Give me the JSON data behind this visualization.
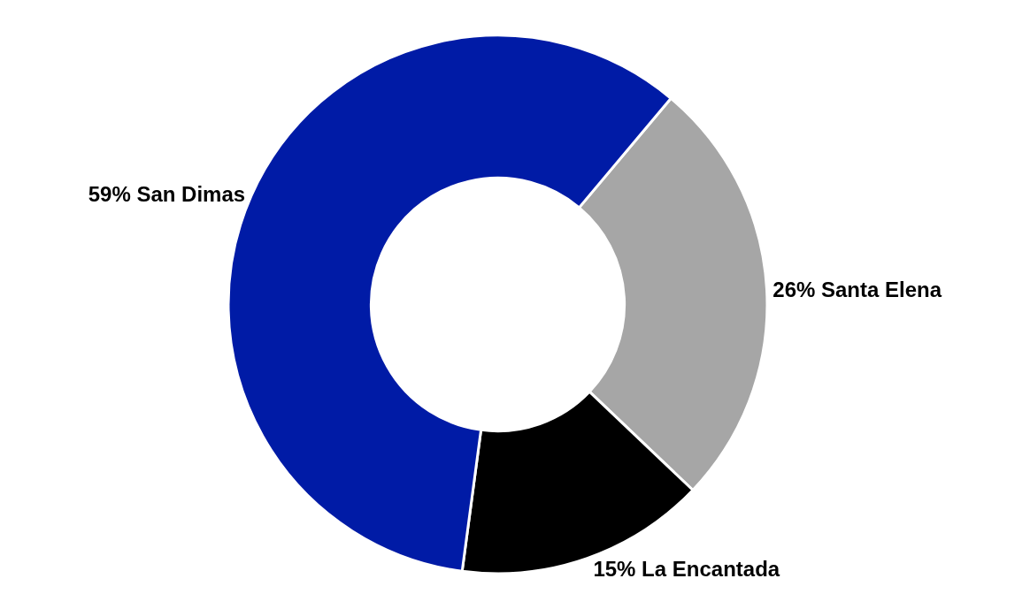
{
  "chart_data": {
    "type": "donut",
    "categories": [
      "Santa Elena",
      "La Encantada",
      "San Dimas"
    ],
    "values": [
      26,
      15,
      59
    ],
    "value_labels": [
      "26%",
      "15%",
      "59%"
    ],
    "colors": [
      "#a6a6a6",
      "#000000",
      "#001ba6"
    ],
    "legend": false
  }
}
